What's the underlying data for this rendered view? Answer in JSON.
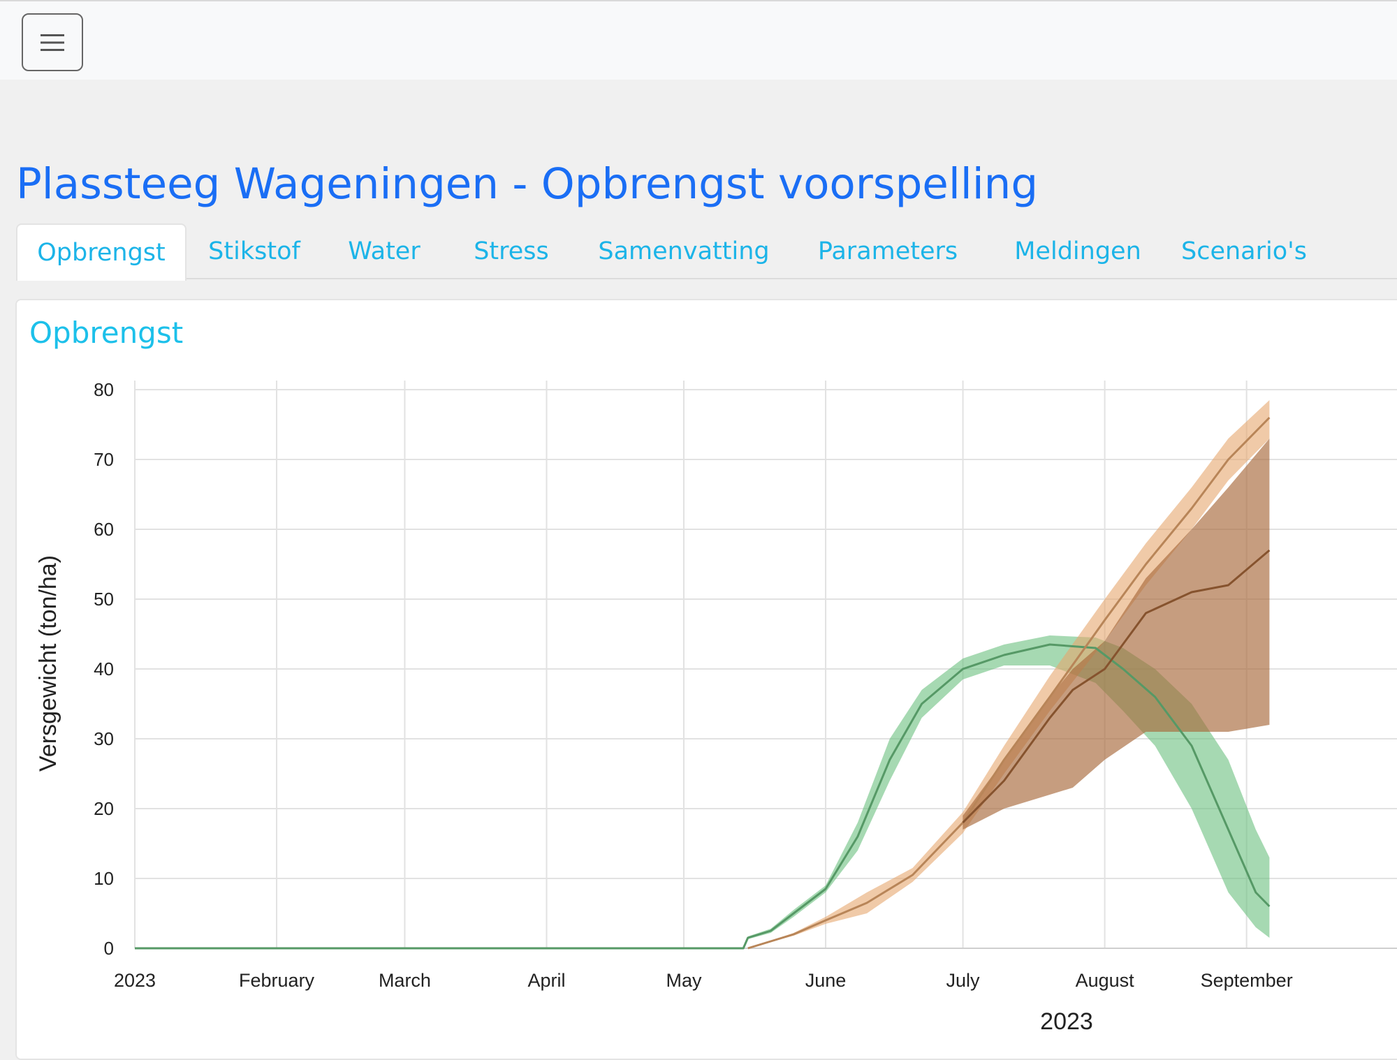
{
  "header": {
    "menu_icon": "hamburger-menu-icon"
  },
  "page": {
    "title": "Plassteeg Wageningen - Opbrengst voorspelling"
  },
  "tabs": [
    {
      "label": "Opbrengst",
      "active": true
    },
    {
      "label": "Stikstof",
      "active": false
    },
    {
      "label": "Water",
      "active": false
    },
    {
      "label": "Stress",
      "active": false
    },
    {
      "label": "Samenvatting",
      "active": false
    },
    {
      "label": "Parameters",
      "active": false
    },
    {
      "label": "Meldingen",
      "active": false
    },
    {
      "label": "Scenario's",
      "active": false
    }
  ],
  "card": {
    "title": "Opbrengst"
  },
  "chart_data": {
    "type": "area",
    "title": "",
    "xlabel": "2023",
    "ylabel": "Versgewicht (ton/ha)",
    "ylim": [
      0,
      80
    ],
    "yticks": [
      0,
      10,
      20,
      30,
      40,
      50,
      60,
      70,
      80
    ],
    "xticks": [
      {
        "label": "2023",
        "date": "2023-01-01"
      },
      {
        "label": "February",
        "date": "2023-02-01"
      },
      {
        "label": "March",
        "date": "2023-03-01"
      },
      {
        "label": "April",
        "date": "2023-04-01"
      },
      {
        "label": "May",
        "date": "2023-05-01"
      },
      {
        "label": "June",
        "date": "2023-06-01"
      },
      {
        "label": "July",
        "date": "2023-07-01"
      },
      {
        "label": "August",
        "date": "2023-08-01"
      },
      {
        "label": "September",
        "date": "2023-09-01"
      }
    ],
    "grid": true,
    "series": [
      {
        "color": "#6bbf7f",
        "band_opacity": 0.6,
        "points": [
          {
            "date": "2023-01-01",
            "y": 0,
            "low": 0,
            "high": 0
          },
          {
            "date": "2023-05-14",
            "y": 0,
            "low": 0,
            "high": 0
          },
          {
            "date": "2023-05-15",
            "y": 1.5,
            "low": 1.3,
            "high": 1.7
          },
          {
            "date": "2023-05-20",
            "y": 2.5,
            "low": 2.2,
            "high": 2.8
          },
          {
            "date": "2023-05-25",
            "y": 5,
            "low": 4.5,
            "high": 5.5
          },
          {
            "date": "2023-06-01",
            "y": 8.5,
            "low": 8,
            "high": 9
          },
          {
            "date": "2023-06-08",
            "y": 16,
            "low": 14,
            "high": 18
          },
          {
            "date": "2023-06-15",
            "y": 27,
            "low": 24,
            "high": 30
          },
          {
            "date": "2023-06-22",
            "y": 35,
            "low": 33,
            "high": 37
          },
          {
            "date": "2023-07-01",
            "y": 40,
            "low": 38.5,
            "high": 41.5
          },
          {
            "date": "2023-07-10",
            "y": 42,
            "low": 40.5,
            "high": 43.5
          },
          {
            "date": "2023-07-20",
            "y": 43.5,
            "low": 40.5,
            "high": 44.8
          },
          {
            "date": "2023-07-30",
            "y": 43,
            "low": 38,
            "high": 44.5
          },
          {
            "date": "2023-08-05",
            "y": 40,
            "low": 34,
            "high": 43
          },
          {
            "date": "2023-08-12",
            "y": 36,
            "low": 29,
            "high": 40
          },
          {
            "date": "2023-08-20",
            "y": 29,
            "low": 20,
            "high": 35
          },
          {
            "date": "2023-08-28",
            "y": 17,
            "low": 8,
            "high": 27
          },
          {
            "date": "2023-09-03",
            "y": 8,
            "low": 3,
            "high": 17
          },
          {
            "date": "2023-09-06",
            "y": 6,
            "low": 1.5,
            "high": 13
          }
        ]
      },
      {
        "color": "#e6a66e",
        "band_opacity": 0.6,
        "points": [
          {
            "date": "2023-05-15",
            "y": 0,
            "low": 0,
            "high": 0
          },
          {
            "date": "2023-05-25",
            "y": 2,
            "low": 1.8,
            "high": 2.2
          },
          {
            "date": "2023-06-01",
            "y": 4,
            "low": 3.5,
            "high": 4.5
          },
          {
            "date": "2023-06-10",
            "y": 6.5,
            "low": 5,
            "high": 8
          },
          {
            "date": "2023-06-20",
            "y": 10.5,
            "low": 9.5,
            "high": 11.5
          },
          {
            "date": "2023-07-01",
            "y": 18,
            "low": 16.5,
            "high": 19.5
          },
          {
            "date": "2023-07-10",
            "y": 27,
            "low": 25,
            "high": 29
          },
          {
            "date": "2023-07-20",
            "y": 36,
            "low": 34,
            "high": 39
          },
          {
            "date": "2023-08-01",
            "y": 47,
            "low": 44,
            "high": 50
          },
          {
            "date": "2023-08-10",
            "y": 55,
            "low": 52,
            "high": 58
          },
          {
            "date": "2023-08-20",
            "y": 63,
            "low": 60,
            "high": 66
          },
          {
            "date": "2023-08-28",
            "y": 70,
            "low": 67,
            "high": 73
          },
          {
            "date": "2023-09-06",
            "y": 76,
            "low": 73,
            "high": 78.5
          }
        ]
      },
      {
        "color": "#a8683a",
        "band_opacity": 0.65,
        "points": [
          {
            "date": "2023-07-01",
            "y": 18,
            "low": 17,
            "high": 19
          },
          {
            "date": "2023-07-10",
            "y": 24,
            "low": 20,
            "high": 27
          },
          {
            "date": "2023-07-20",
            "y": 33,
            "low": 22,
            "high": 36
          },
          {
            "date": "2023-07-25",
            "y": 37,
            "low": 23,
            "high": 40
          },
          {
            "date": "2023-08-01",
            "y": 40,
            "low": 27,
            "high": 44
          },
          {
            "date": "2023-08-10",
            "y": 48,
            "low": 31,
            "high": 53
          },
          {
            "date": "2023-08-20",
            "y": 51,
            "low": 31,
            "high": 60
          },
          {
            "date": "2023-08-28",
            "y": 52,
            "low": 31,
            "high": 66
          },
          {
            "date": "2023-09-06",
            "y": 57,
            "low": 32,
            "high": 73
          }
        ]
      }
    ]
  }
}
